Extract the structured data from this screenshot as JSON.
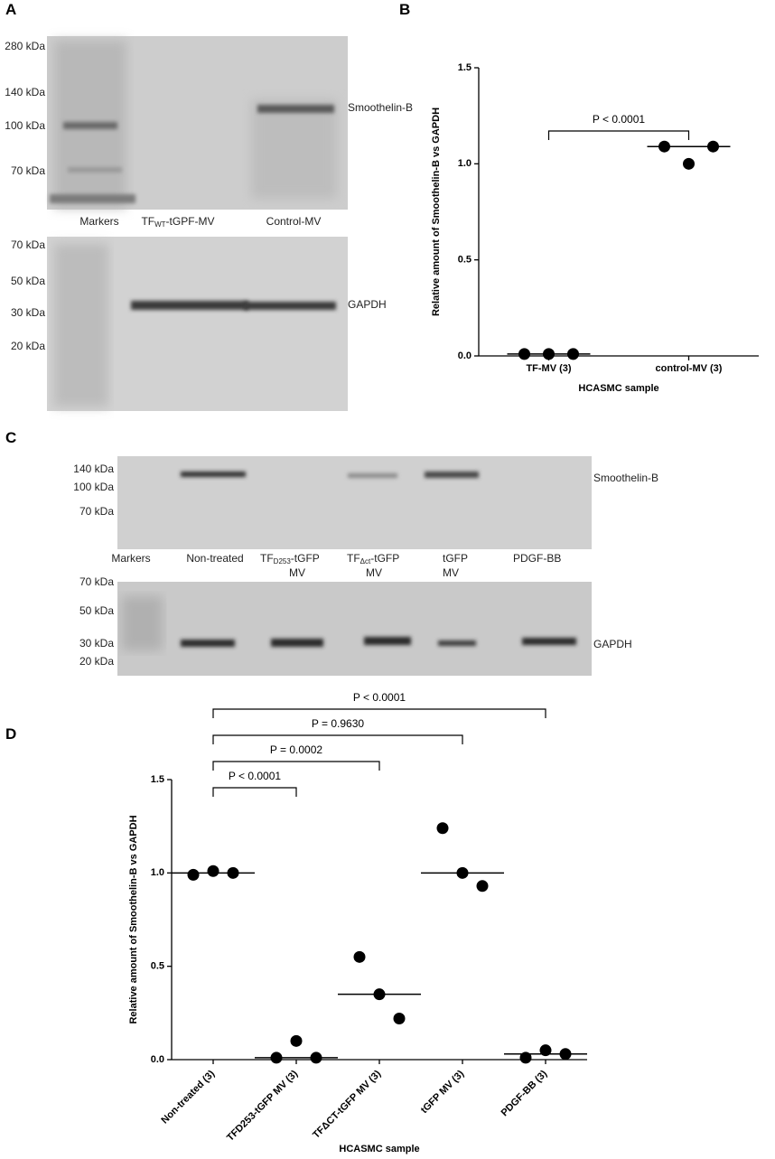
{
  "panels": {
    "a": {
      "letter": "A",
      "top_kda": [
        "280 kDa",
        "140 kDa",
        "100 kDa",
        "70 kDa"
      ],
      "bottom_kda": [
        "70 kDa",
        "50 kDa",
        "30 kDa",
        "20 kDa"
      ],
      "lanes": [
        {
          "main": "Markers"
        },
        {
          "main": "TF",
          "sub": "WT",
          "rest": "-tGPF-MV"
        },
        {
          "main": "Control-MV"
        }
      ],
      "top_protein": "Smoothelin-B",
      "bottom_protein": "GAPDH"
    },
    "b": {
      "letter": "B"
    },
    "c": {
      "letter": "C",
      "top_kda": [
        "140 kDa",
        "100 kDa",
        "70 kDa"
      ],
      "bottom_kda": [
        "70 kDa",
        "50 kDa",
        "30 kDa",
        "20 kDa"
      ],
      "lanes": [
        {
          "main": "Markers"
        },
        {
          "main": "Non-treated"
        },
        {
          "main": "TF",
          "sub": "D253",
          "rest": "-tGFP",
          "line2": "MV"
        },
        {
          "main": "TF",
          "sub": "Δct",
          "rest": "-tGFP",
          "line2": "MV"
        },
        {
          "main": "tGFP",
          "line2": "MV"
        },
        {
          "main": "PDGF-BB"
        }
      ],
      "top_protein": "Smoothelin-B",
      "bottom_protein": "GAPDH"
    },
    "d": {
      "letter": "D"
    }
  },
  "chart_data": [
    {
      "type": "dot",
      "y_label": "Relative amount of Smoothelin-B vs GAPDH",
      "x_label": "HCASMC sample",
      "categories": [
        "TF-MV (3)",
        "control-MV (3)"
      ],
      "points": [
        [
          0.01,
          0.01,
          0.01
        ],
        [
          1.09,
          1.0,
          1.09
        ]
      ],
      "medians": [
        0.01,
        1.09
      ],
      "ylim": [
        0,
        1.5
      ],
      "yticks": [
        {
          "value": 0,
          "label": "0.0"
        },
        0.5,
        {
          "value": 1,
          "label": "1.0"
        },
        1.5
      ],
      "color": "#000000",
      "comparisons": [
        {
          "label": "P < 0.0001",
          "groups": [
            "TF-MV (3)",
            "control-MV (3)"
          ]
        }
      ]
    },
    {
      "type": "dot",
      "y_label": "Relative amount of Smoothelin-B vs GAPDH",
      "x_label": "HCASMC sample",
      "categories": [
        "Non-treated (3)",
        "TFD253-tGFP MV (3)",
        "TFΔCT-tGFP MV (3)",
        "tGFP MV (3)",
        "PDGF-BB (3)"
      ],
      "points": [
        [
          0.99,
          1.01,
          1.0
        ],
        [
          0.01,
          0.1,
          0.01
        ],
        [
          0.55,
          0.35,
          0.22
        ],
        [
          1.24,
          1.0,
          0.93
        ],
        [
          0.01,
          0.05,
          0.03
        ]
      ],
      "medians": [
        1.0,
        0.01,
        0.35,
        1.0,
        0.03
      ],
      "ylim": [
        0,
        1.5
      ],
      "yticks": [
        {
          "value": 0,
          "label": "0.0"
        },
        0.5,
        {
          "value": 1,
          "label": "1.0"
        },
        1.5
      ],
      "color": "#000000",
      "comparisons": [
        {
          "label": "P < 0.0001",
          "groups": [
            "Non-treated (3)",
            "TFD253-tGFP MV (3)"
          ]
        },
        {
          "label": "P = 0.0002",
          "groups": [
            "Non-treated (3)",
            "TFΔCT-tGFP MV (3)"
          ]
        },
        {
          "label": "P = 0.9630",
          "groups": [
            "Non-treated (3)",
            "tGFP MV (3)"
          ]
        },
        {
          "label": "P < 0.0001",
          "groups": [
            "Non-treated (3)",
            "PDGF-BB (3)"
          ]
        }
      ]
    }
  ]
}
